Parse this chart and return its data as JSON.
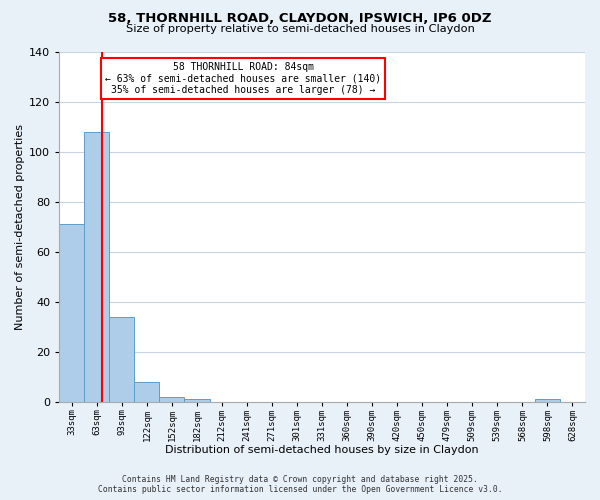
{
  "title1": "58, THORNHILL ROAD, CLAYDON, IPSWICH, IP6 0DZ",
  "title2": "Size of property relative to semi-detached houses in Claydon",
  "xlabel": "Distribution of semi-detached houses by size in Claydon",
  "ylabel": "Number of semi-detached properties",
  "bar_labels": [
    "33sqm",
    "63sqm",
    "93sqm",
    "122sqm",
    "152sqm",
    "182sqm",
    "212sqm",
    "241sqm",
    "271sqm",
    "301sqm",
    "331sqm",
    "360sqm",
    "390sqm",
    "420sqm",
    "450sqm",
    "479sqm",
    "509sqm",
    "539sqm",
    "568sqm",
    "598sqm",
    "628sqm"
  ],
  "bar_values": [
    71,
    108,
    34,
    8,
    2,
    1,
    0,
    0,
    0,
    0,
    0,
    0,
    0,
    0,
    0,
    0,
    0,
    0,
    0,
    1,
    0
  ],
  "bar_color": "#aecde8",
  "bar_edge_color": "#5b9ec9",
  "ylim": [
    0,
    140
  ],
  "yticks": [
    0,
    20,
    40,
    60,
    80,
    100,
    120,
    140
  ],
  "annotation_title": "58 THORNHILL ROAD: 84sqm",
  "annotation_line1": "← 63% of semi-detached houses are smaller (140)",
  "annotation_line2": "35% of semi-detached houses are larger (78) →",
  "footer1": "Contains HM Land Registry data © Crown copyright and database right 2025.",
  "footer2": "Contains public sector information licensed under the Open Government Licence v3.0.",
  "bg_color": "#e8f0f8",
  "plot_bg_color": "#ffffff",
  "grid_color": "#c8d4e0"
}
